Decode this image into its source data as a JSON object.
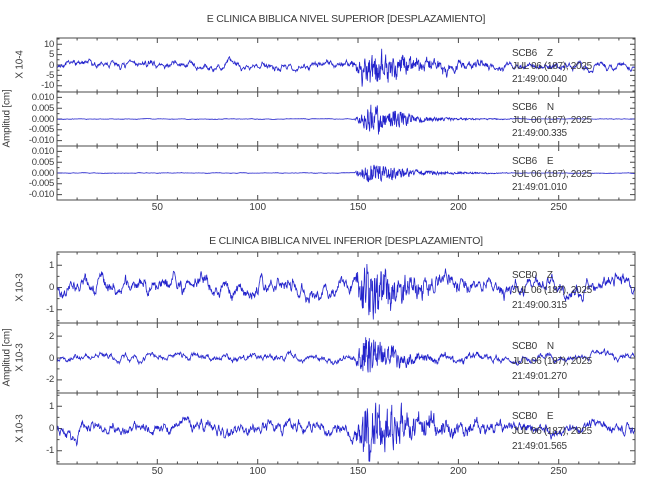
{
  "figure": {
    "background_color": "#ffffff",
    "trace_color": "#2323cc",
    "axis_color": "#4a4a4a",
    "text_color": "#3a3a3a"
  },
  "chart_data": {
    "type": "line",
    "description": "Two stacked seismogram panels, three traces (Z,N,E) each, displacement vs time in seconds",
    "xlabel": "",
    "x_axis_range": [
      0,
      288
    ],
    "panels": [
      {
        "title": "E CLINICA BIBLICA NIVEL SUPERIOR [DESPLAZAMIENTO]",
        "ylabel": "Amplitud [cm]",
        "xlim": [
          0,
          288
        ],
        "x_major_ticks": [
          50,
          100,
          150,
          200,
          250
        ],
        "x_minor_step": 10,
        "traces": [
          {
            "station": "SCB6",
            "channel": "Z",
            "label": "SCB6    Z",
            "date_label": "JUL 06 (187), 2025",
            "time_label": "21:49:00.040",
            "scale_label": "X 10-4",
            "ylim": [
              -13,
              13
            ],
            "y_major_ticks": [
              10,
              5,
              0,
              -5,
              -10
            ],
            "y_tick_labels": [
              "10",
              "5",
              "0",
              "-5",
              "-10"
            ],
            "y_minor_step": 2.5,
            "noise_amp": 2.5,
            "burst_envelope": [
              [
                0,
                0
              ],
              [
                146,
                0
              ],
              [
                150,
                4
              ],
              [
                153,
                9
              ],
              [
                158,
                10
              ],
              [
                164,
                8
              ],
              [
                170,
                6
              ],
              [
                178,
                4
              ],
              [
                188,
                2.5
              ],
              [
                200,
                1.5
              ],
              [
                215,
                0.8
              ],
              [
                235,
                0
              ],
              [
                288,
                0
              ]
            ],
            "seed": 7
          },
          {
            "station": "SCB6",
            "channel": "N",
            "label": "SCB6    N",
            "date_label": "JUL 06 (187), 2025",
            "time_label": "21:49:00.335",
            "scale_label": "",
            "ylim": [
              -0.0125,
              0.0125
            ],
            "y_major_ticks": [
              0.01,
              0.005,
              0.0,
              -0.005,
              -0.01
            ],
            "y_tick_labels": [
              "0.010",
              "0.005",
              "0.000",
              "-0.005",
              "-0.010"
            ],
            "y_minor_step": 0.0025,
            "noise_amp": 0.00016,
            "burst_envelope": [
              [
                0,
                0
              ],
              [
                148,
                0
              ],
              [
                152,
                0.004
              ],
              [
                155,
                0.008
              ],
              [
                160,
                0.0075
              ],
              [
                164,
                0.003
              ],
              [
                168,
                0.0055
              ],
              [
                173,
                0.0045
              ],
              [
                178,
                0.002
              ],
              [
                186,
                0.0012
              ],
              [
                200,
                0.0006
              ],
              [
                220,
                0.0002
              ],
              [
                240,
                0
              ],
              [
                288,
                0
              ]
            ],
            "seed": 13
          },
          {
            "station": "SCB6",
            "channel": "E",
            "label": "SCB6    E",
            "date_label": "JUL 06 (187), 2025",
            "time_label": "21:49:01.010",
            "scale_label": "",
            "ylim": [
              -0.0125,
              0.0125
            ],
            "y_major_ticks": [
              0.01,
              0.005,
              0.0,
              -0.005,
              -0.01
            ],
            "y_tick_labels": [
              "0.010",
              "0.005",
              "0.000",
              "-0.005",
              "-0.010"
            ],
            "y_minor_step": 0.0025,
            "noise_amp": 0.00016,
            "burst_envelope": [
              [
                0,
                0
              ],
              [
                148,
                0
              ],
              [
                152,
                0.003
              ],
              [
                156,
                0.0065
              ],
              [
                161,
                0.005
              ],
              [
                166,
                0.0035
              ],
              [
                172,
                0.0025
              ],
              [
                180,
                0.0015
              ],
              [
                192,
                0.0008
              ],
              [
                210,
                0.0004
              ],
              [
                235,
                0
              ],
              [
                288,
                0
              ]
            ],
            "seed": 21
          }
        ]
      },
      {
        "title": "E CLINICA BIBLICA NIVEL INFERIOR [DESPLAZAMIENTO]",
        "ylabel": "Amplitud [cm]",
        "xlim": [
          0,
          288
        ],
        "x_major_ticks": [
          50,
          100,
          150,
          200,
          250
        ],
        "x_minor_step": 10,
        "traces": [
          {
            "station": "SCB0",
            "channel": "Z",
            "label": "SCB0    Z",
            "date_label": "JUL 06 (187), 2025",
            "time_label": "21:49:00.315",
            "scale_label": "X 10-3",
            "ylim": [
              -1.6,
              1.6
            ],
            "y_major_ticks": [
              1,
              0,
              -1
            ],
            "y_tick_labels": [
              "1",
              "0",
              "-1"
            ],
            "y_minor_step": 0.5,
            "noise_amp": 0.5,
            "burst_envelope": [
              [
                0,
                0
              ],
              [
                147,
                0
              ],
              [
                151,
                0.8
              ],
              [
                154,
                1.6
              ],
              [
                158,
                1.2
              ],
              [
                164,
                0.9
              ],
              [
                172,
                0.6
              ],
              [
                182,
                0.35
              ],
              [
                195,
                0.2
              ],
              [
                215,
                0
              ],
              [
                288,
                0
              ]
            ],
            "seed": 42
          },
          {
            "station": "SCB0",
            "channel": "N",
            "label": "SCB0    N",
            "date_label": "JUL 06 (187), 2025",
            "time_label": "21:49:01.270",
            "scale_label": "X 10-3",
            "ylim": [
              -3.2,
              3.2
            ],
            "y_major_ticks": [
              2,
              0,
              -2
            ],
            "y_tick_labels": [
              "2",
              "0",
              "-2"
            ],
            "y_minor_step": 1,
            "noise_amp": 0.45,
            "burst_envelope": [
              [
                0,
                0
              ],
              [
                148,
                0
              ],
              [
                151,
                1.2
              ],
              [
                153.5,
                3.0
              ],
              [
                156,
                2.2
              ],
              [
                160,
                1.4
              ],
              [
                166,
                0.9
              ],
              [
                175,
                0.55
              ],
              [
                188,
                0.3
              ],
              [
                205,
                0.15
              ],
              [
                230,
                0
              ],
              [
                288,
                0
              ]
            ],
            "seed": 99
          },
          {
            "station": "SCB0",
            "channel": "E",
            "label": "SCB0    E",
            "date_label": "JUL 06 (187), 2025",
            "time_label": "21:49:01.565",
            "scale_label": "X 10-3",
            "ylim": [
              -1.6,
              1.6
            ],
            "y_major_ticks": [
              1,
              0,
              -1
            ],
            "y_tick_labels": [
              "1",
              "0",
              "-1"
            ],
            "y_minor_step": 0.5,
            "noise_amp": 0.4,
            "burst_envelope": [
              [
                0,
                0
              ],
              [
                148,
                0
              ],
              [
                151,
                0.8
              ],
              [
                154,
                1.9
              ],
              [
                158,
                1.3
              ],
              [
                163,
                1.0
              ],
              [
                170,
                0.8
              ],
              [
                180,
                0.5
              ],
              [
                192,
                0.3
              ],
              [
                210,
                0.15
              ],
              [
                235,
                0
              ],
              [
                288,
                0
              ]
            ],
            "seed": 123
          }
        ]
      }
    ]
  }
}
